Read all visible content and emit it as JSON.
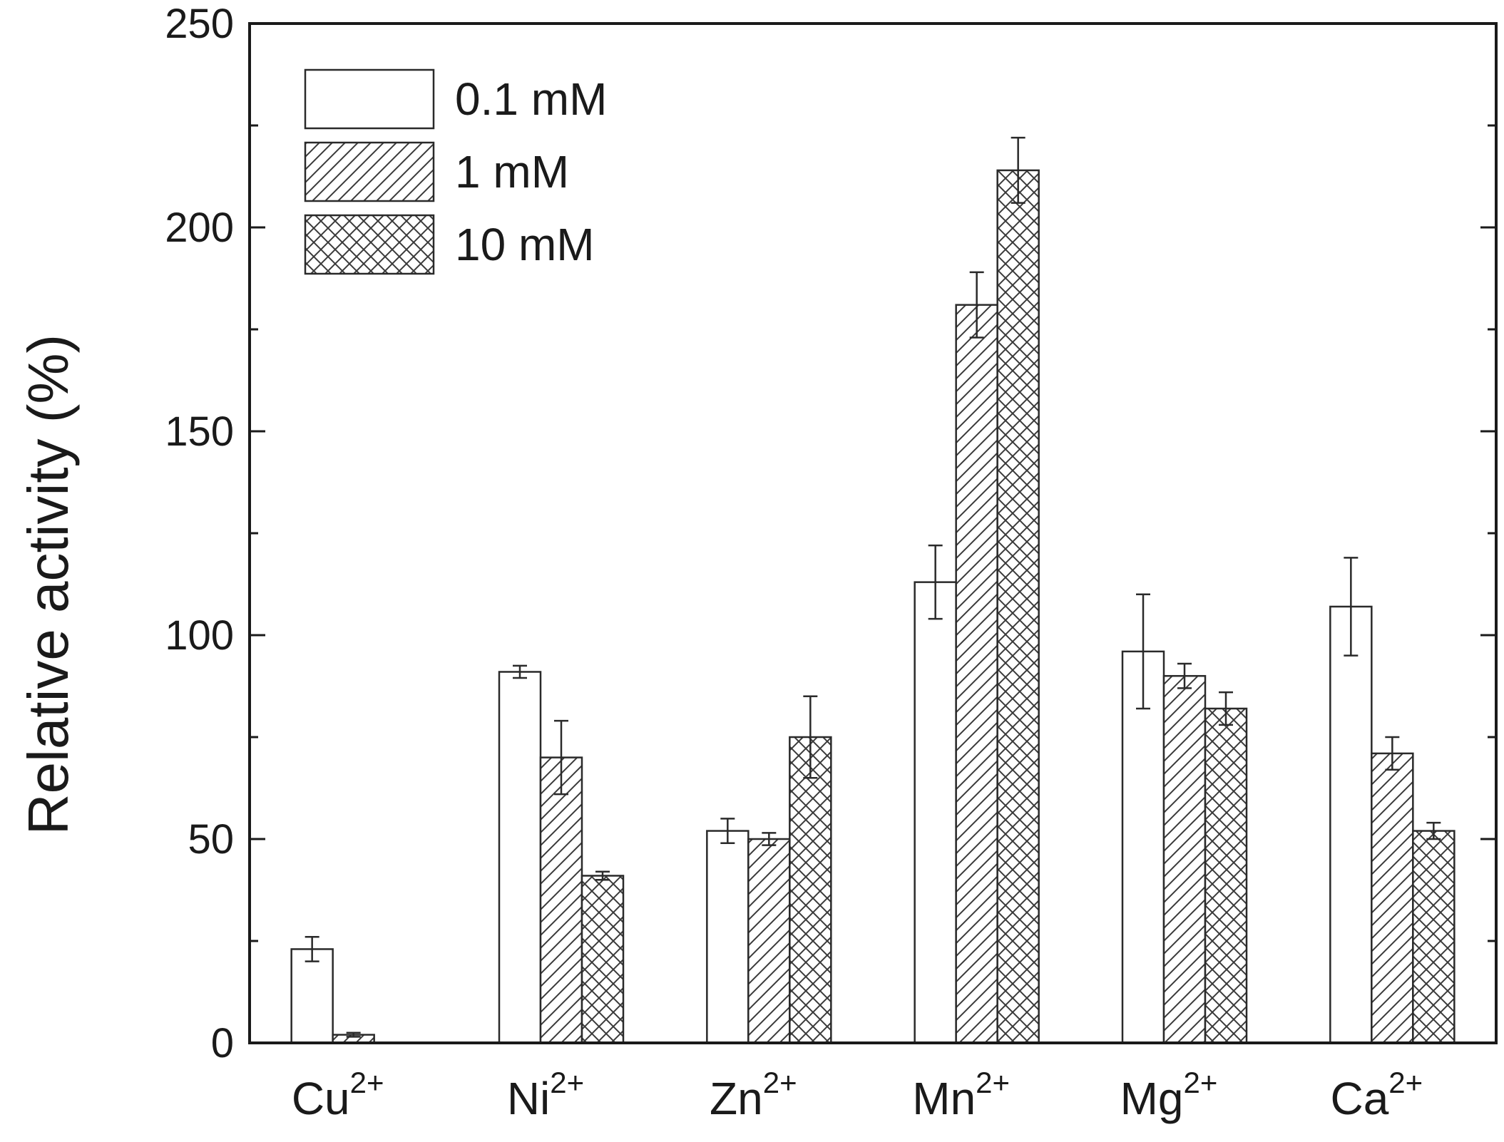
{
  "chart_data": {
    "type": "bar",
    "ylabel": "Relative activity (%)",
    "xlabel": "",
    "ylim": [
      0,
      250
    ],
    "yticks": [
      0,
      50,
      100,
      150,
      200,
      250
    ],
    "categories": [
      {
        "base": "Cu",
        "charge": "2+"
      },
      {
        "base": "Ni",
        "charge": "2+"
      },
      {
        "base": "Zn",
        "charge": "2+"
      },
      {
        "base": "Mn",
        "charge": "2+"
      },
      {
        "base": "Mg",
        "charge": "2+"
      },
      {
        "base": "Ca",
        "charge": "2+"
      }
    ],
    "series": [
      {
        "name": "0.1 mM",
        "pattern": "none",
        "values": [
          23,
          91,
          52,
          113,
          96,
          107
        ],
        "errors": [
          3,
          1.5,
          3,
          9,
          14,
          12
        ]
      },
      {
        "name": "1 mM",
        "pattern": "hatch",
        "values": [
          2,
          70,
          50,
          181,
          90,
          71
        ],
        "errors": [
          0.5,
          9,
          1.5,
          8,
          3,
          4
        ]
      },
      {
        "name": "10 mM",
        "pattern": "crosshatch",
        "values": [
          0,
          41,
          75,
          214,
          82,
          52
        ],
        "errors": [
          0,
          1,
          10,
          8,
          4,
          2
        ]
      }
    ],
    "legend_position": "top-left",
    "grid": false,
    "colors": {
      "bar_fill": "#ffffff",
      "stroke": "#2a2a2a",
      "axis": "#1a1a1a"
    }
  }
}
